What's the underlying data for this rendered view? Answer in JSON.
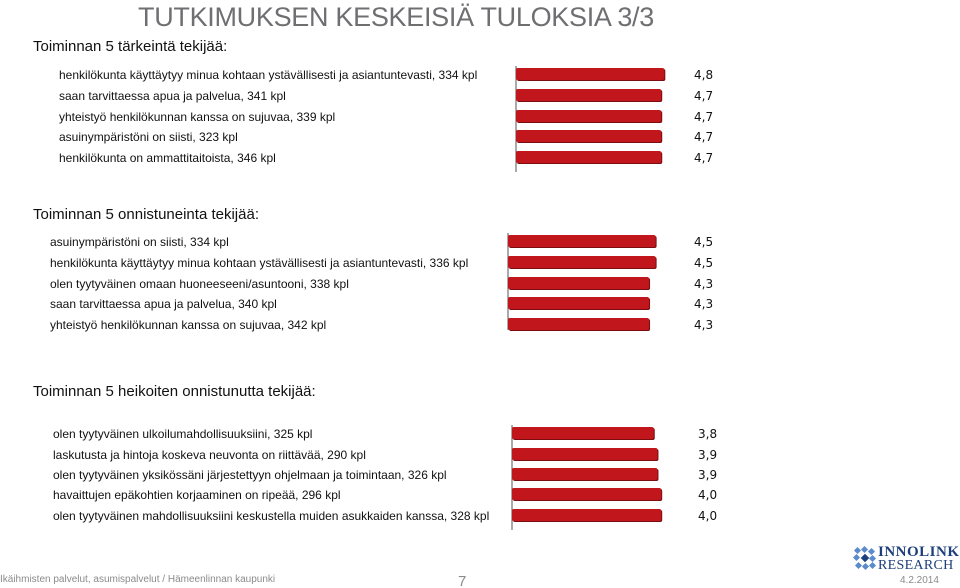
{
  "title": "TUTKIMUKSEN KESKEISIÄ TULOKSIA 3/3",
  "chart_data": [
    {
      "type": "bar",
      "orientation": "horizontal",
      "title": "Toiminnan 5 tärkeintä tekijää:",
      "categories": [
        "henkilökunta käyttäytyy minua kohtaan ystävällisesti ja asiantuntevasti, 334 kpl",
        "saan tarvittaessa apua ja palvelua, 341 kpl",
        "yhteistyö henkilökunnan kanssa on sujuvaa, 339 kpl",
        "asuinympäristöni on siisti, 323 kpl",
        "henkilökunta on ammattitaitoista, 346 kpl"
      ],
      "values": [
        4.8,
        4.7,
        4.7,
        4.7,
        4.7
      ],
      "value_labels": [
        "4,8",
        "4,7",
        "4,7",
        "4,7",
        "4,7"
      ]
    },
    {
      "type": "bar",
      "orientation": "horizontal",
      "title": "Toiminnan 5 onnistuneinta tekijää:",
      "categories": [
        "asuinympäristöni on siisti, 334 kpl",
        "henkilökunta käyttäytyy minua kohtaan ystävällisesti ja asiantuntevasti, 336 kpl",
        "olen tyytyväinen omaan huoneeseeni/asuntooni, 338 kpl",
        "saan tarvittaessa apua ja palvelua, 340 kpl",
        "yhteistyö henkilökunnan kanssa on sujuvaa, 342 kpl"
      ],
      "values": [
        4.5,
        4.5,
        4.3,
        4.3,
        4.3
      ],
      "value_labels": [
        "4,5",
        "4,5",
        "4,3",
        "4,3",
        "4,3"
      ]
    },
    {
      "type": "bar",
      "orientation": "horizontal",
      "title": "Toiminnan 5 heikoiten onnistunutta tekijää:",
      "categories": [
        "olen tyytyväinen ulkoilumahdollisuuksiini, 325 kpl",
        "laskutusta ja hintoja koskeva neuvonta on riittävää, 290 kpl",
        "olen tyytyväinen yksikössäni järjestettyyn ohjelmaan ja toimintaan, 326 kpl",
        "havaittujen epäkohtien korjaaminen on ripeää, 296 kpl",
        "olen tyytyväinen mahdollisuuksiini keskustella muiden asukkaiden kanssa, 328 kpl"
      ],
      "values": [
        3.8,
        3.9,
        3.9,
        4.0,
        4.0
      ],
      "value_labels": [
        "3,8",
        "3,9",
        "3,9",
        "4,0",
        "4,0"
      ]
    }
  ],
  "colors": {
    "bar": "#c0161c",
    "bar_shadow": "#7a0d10"
  },
  "footer": {
    "left": "Ikäihmisten palvelut, asumispalvelut / Hämeenlinnan kaupunki",
    "page": "7",
    "date": "4.2.2014",
    "logo_line1": "INNOLINK",
    "logo_line2": "RESEARCH"
  }
}
